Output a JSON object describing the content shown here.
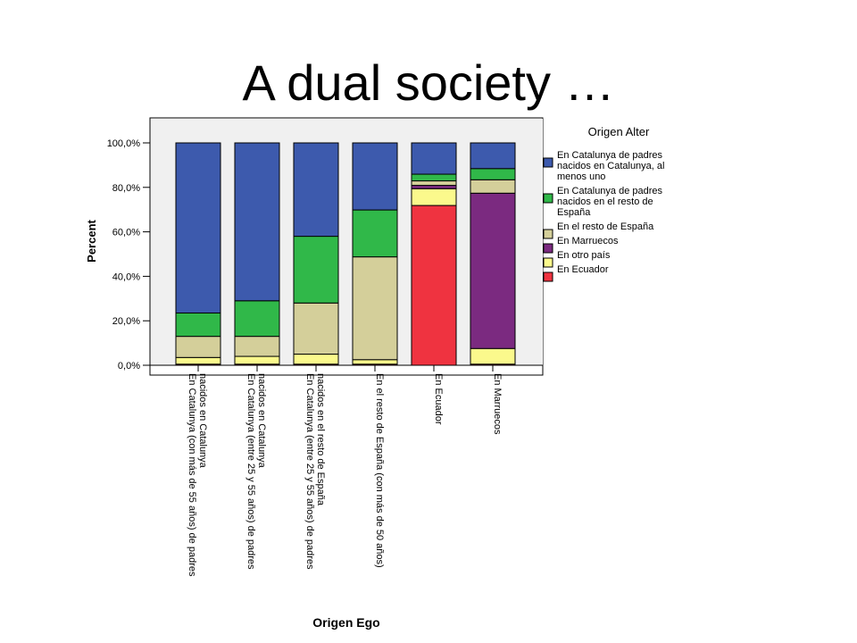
{
  "slide": {
    "title": "A dual society …"
  },
  "chart_data": {
    "type": "bar",
    "stacked": true,
    "percent": true,
    "xlabel": "Origen Ego",
    "ylabel": "Percent",
    "ylim": [
      0,
      100
    ],
    "yticks": [
      "0,0%",
      "20,0%",
      "40,0%",
      "60,0%",
      "80,0%",
      "100,0%"
    ],
    "grid": false,
    "legend_title": "Origen Alter",
    "legend_position": "right",
    "categories": [
      [
        "En Catalunya (con más de 55 años) de padres",
        "nacidos en Catalunya"
      ],
      [
        "En Catalunya (entre 25 y 55 años) de padres",
        "nacidos en Catalunya"
      ],
      [
        "En Catalunya (entre 25 y 55 años) de padres",
        "nacidos en el resto de España"
      ],
      [
        "En el resto de España (con más de 50 años)"
      ],
      [
        "En Ecuador"
      ],
      [
        "En Marruecos"
      ]
    ],
    "series": [
      {
        "name": "En Ecuador",
        "color": "#ef3340",
        "values": [
          0.5,
          0.5,
          0.5,
          0.5,
          71.5,
          0.5
        ]
      },
      {
        "name": "En otro país",
        "color": "#fbf98c",
        "values": [
          3,
          3.5,
          4.5,
          2,
          7.5,
          7
        ]
      },
      {
        "name": "En Marruecos",
        "color": "#7b2a80",
        "values": [
          0,
          0,
          0,
          0,
          1.5,
          69.5
        ]
      },
      {
        "name": "En el resto de España",
        "color": "#d4cf9a",
        "values": [
          9.5,
          9,
          23,
          46,
          2,
          6
        ]
      },
      {
        "name": "En Catalunya de padres nacidos en el resto de España",
        "color": "#30b849",
        "values": [
          10.5,
          16,
          30,
          21,
          3,
          5
        ]
      },
      {
        "name": "En Catalunya de padres nacidos en Catalunya, al menos uno",
        "color": "#3d5aad",
        "values": [
          76.5,
          71,
          42,
          30,
          14,
          11.5
        ]
      }
    ],
    "legend_items": [
      {
        "lines": [
          "En Catalunya de padres",
          "nacidos en Catalunya, al",
          "menos uno"
        ],
        "color": "#3d5aad"
      },
      {
        "lines": [
          "En Catalunya de padres",
          "nacidos en el resto de",
          "España"
        ],
        "color": "#30b849"
      },
      {
        "lines": [
          "En el resto de España"
        ],
        "color": "#d4cf9a"
      },
      {
        "lines": [
          "En Marruecos"
        ],
        "color": "#7b2a80"
      },
      {
        "lines": [
          "En otro país"
        ],
        "color": "#fbf98c"
      },
      {
        "lines": [
          "En Ecuador"
        ],
        "color": "#ef3340"
      }
    ]
  }
}
